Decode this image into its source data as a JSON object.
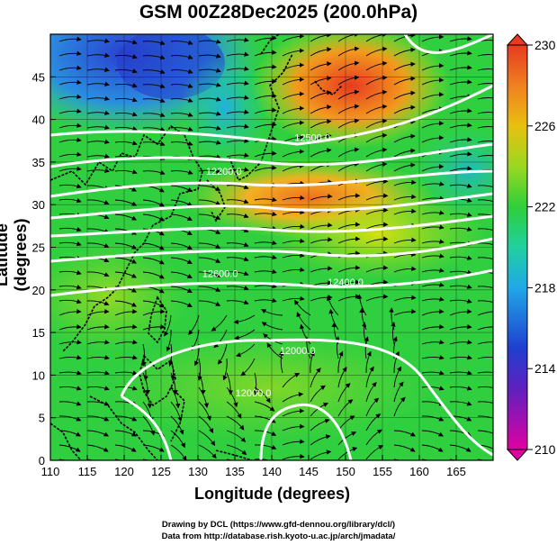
{
  "title": "GSM 00Z28Dec2025 (200.0hPa)",
  "xlabel": "Longitude (degrees)",
  "ylabel": "Latitude  (degrees)",
  "x_ticks": [
    "110",
    "115",
    "120",
    "125",
    "130",
    "135",
    "140",
    "145",
    "150",
    "155",
    "160",
    "165"
  ],
  "y_ticks": [
    "0",
    "5",
    "10",
    "15",
    "20",
    "25",
    "30",
    "35",
    "40",
    "45"
  ],
  "x_range": [
    110,
    170
  ],
  "y_range": [
    0,
    50
  ],
  "colorbar": {
    "ticks": [
      "210",
      "214",
      "218",
      "222",
      "226",
      "230"
    ],
    "range": [
      210,
      230
    ]
  },
  "contour_labels": [
    {
      "text": "12500.0",
      "lon": 145.5,
      "lat": 37.5
    },
    {
      "text": "12200.0",
      "lon": 133.5,
      "lat": 33.5
    },
    {
      "text": "12400.0",
      "lon": 150,
      "lat": 20.5
    },
    {
      "text": "12000.0",
      "lon": 143.5,
      "lat": 12.5
    },
    {
      "text": "12000.0",
      "lon": 137.5,
      "lat": 7.5
    },
    {
      "text": "12600.0",
      "lon": 133,
      "lat": 21.5
    }
  ],
  "credits": [
    "Drawing by DCL (https://www.gfd-dennou.org/library/dcl/)",
    "Data from http://database.rish.kyoto-u.ac.jp/arch/jmadata/"
  ],
  "palette": {
    "magenta": "#e000a0",
    "blue": "#1f3fcf",
    "cyan": "#20a8e8",
    "green": "#2ecf3a",
    "yellow": "#d6e010",
    "orange": "#f29a1e",
    "red": "#e83a20"
  }
}
